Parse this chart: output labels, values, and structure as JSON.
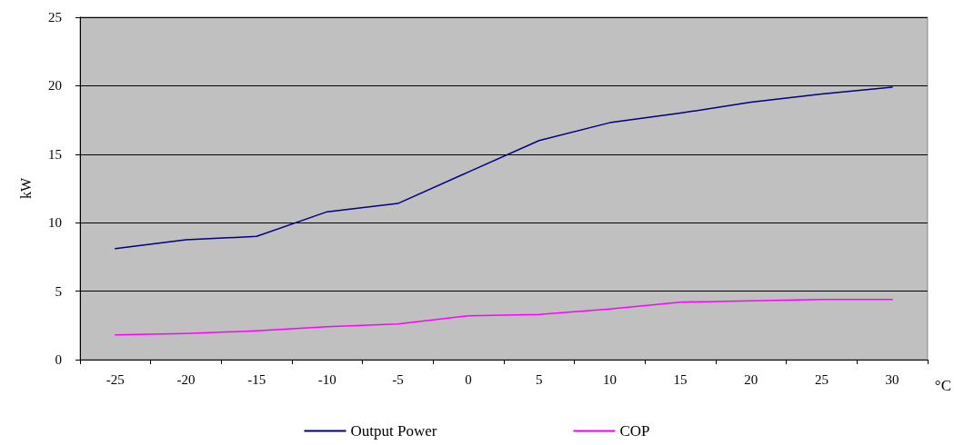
{
  "chart_data": {
    "type": "line",
    "xlabel": "°C",
    "ylabel": "kW",
    "categories": [
      "-25",
      "-20",
      "-15",
      "-10",
      "-5",
      "0",
      "5",
      "10",
      "15",
      "20",
      "25",
      "30"
    ],
    "series": [
      {
        "name": "Output Power",
        "color": "#000080",
        "values": [
          8.1,
          8.75,
          9.0,
          10.8,
          11.4,
          13.7,
          16.0,
          17.3,
          18.0,
          18.8,
          19.4,
          19.9
        ]
      },
      {
        "name": "COP",
        "color": "#ff00ff",
        "values": [
          1.8,
          1.9,
          2.1,
          2.4,
          2.6,
          3.2,
          3.3,
          3.7,
          4.2,
          4.3,
          4.4,
          4.4
        ]
      }
    ],
    "ylim": [
      0,
      25
    ],
    "yticks": [
      0,
      5,
      10,
      15,
      20,
      25
    ],
    "grid": "y",
    "legend": "bottom",
    "marker": "none",
    "line_style": "solid"
  }
}
